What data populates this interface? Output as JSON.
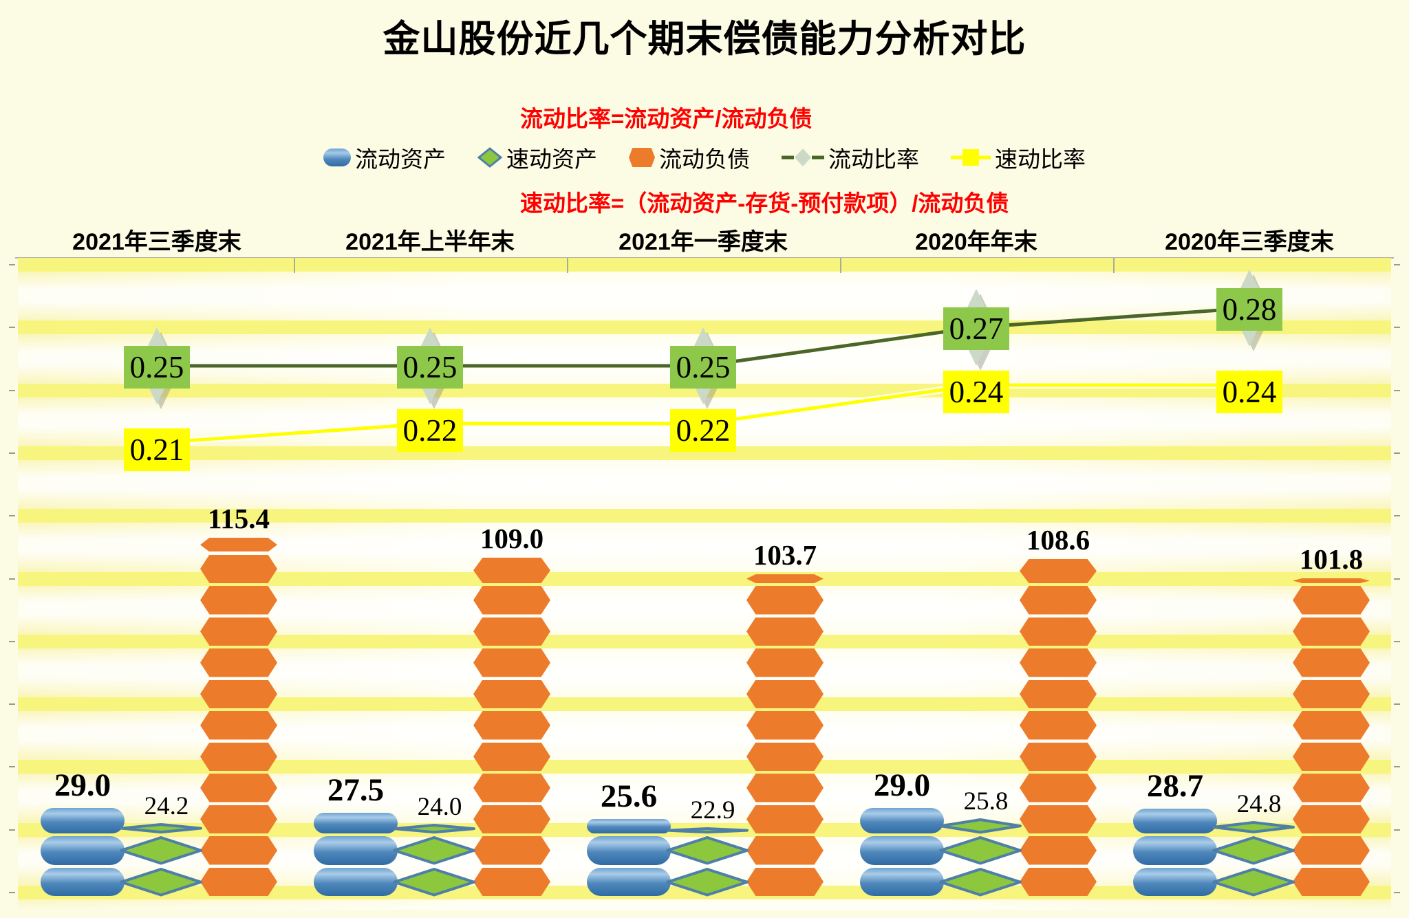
{
  "title": "金山股份近几个期末偿债能力分析对比",
  "formulas": [
    "流动比率=流动资产/流动负债",
    "速动比率=（流动资产-存货-预付款项）/流动负债"
  ],
  "legend": [
    {
      "label": "流动资产",
      "icon": "capsule-icon",
      "color": "#4E87BB"
    },
    {
      "label": "速动资产",
      "icon": "diamond-icon",
      "color": "#8CC73E"
    },
    {
      "label": "流动负债",
      "icon": "hexagon-icon",
      "color": "#EC7C2B"
    },
    {
      "label": "流动比率",
      "icon": "line-diamond-icon",
      "color": "#4A6628"
    },
    {
      "label": "速动比率",
      "icon": "line-square-icon",
      "color": "#FFFF00"
    }
  ],
  "chart_data": {
    "type": "pictorial-bar + line combo",
    "title": "金山股份近几个期末偿债能力分析对比",
    "categories": [
      "2021年三季度末",
      "2021年上半年末",
      "2021年一季度末",
      "2020年年末",
      "2020年三季度末"
    ],
    "series": [
      {
        "name": "流动资产",
        "type": "bar",
        "shape": "capsule",
        "color": "#4E87BB",
        "axis": "primary",
        "label_decimals": 1,
        "values": [
          29.0,
          27.5,
          25.6,
          29.0,
          28.7
        ]
      },
      {
        "name": "速动资产",
        "type": "bar",
        "shape": "diamond",
        "color": "#8CC73E",
        "axis": "primary",
        "label_decimals": 1,
        "values": [
          24.2,
          24.0,
          22.9,
          25.8,
          24.8
        ]
      },
      {
        "name": "流动负债",
        "type": "bar",
        "shape": "hexagon",
        "color": "#EC7C2B",
        "axis": "primary",
        "label_decimals": 1,
        "values": [
          115.4,
          109.0,
          103.7,
          108.6,
          101.8
        ]
      },
      {
        "name": "流动比率",
        "type": "line",
        "color": "#4A6628",
        "axis": "secondary",
        "label_decimals": 2,
        "label_bg": "#8DC84B",
        "marker": "pale-diamond",
        "values": [
          0.25,
          0.25,
          0.25,
          0.27,
          0.28
        ]
      },
      {
        "name": "速动比率",
        "type": "line",
        "color": "#FFFF00",
        "axis": "secondary",
        "label_decimals": 2,
        "label_bg": "#FFFF00",
        "marker": "square",
        "values": [
          0.21,
          0.22,
          0.22,
          0.24,
          0.24
        ]
      }
    ],
    "units_per_shape": 10,
    "primary_axis": {
      "min": 0,
      "max_estimate": 200,
      "gridline_step_estimate": 20,
      "labels_visible": false
    },
    "secondary_axis": {
      "min": 0,
      "max_estimate": 0.3,
      "labels_visible": false
    },
    "grid": "horizontal yellow bands, 11 lines",
    "legend_position": "top",
    "colors": {
      "background": "#FCFBE4",
      "grid_band": "#F8F57E",
      "bar_blue": "#4E87BB",
      "bar_green": "#8CC73E",
      "bar_orange": "#EC7C2B",
      "line_dark_green": "#4A6628",
      "line_yellow": "#FFFF00",
      "label_box_green": "#8DC84B",
      "label_box_yellow": "#FFFF00",
      "formula_red": "#FF0000"
    }
  }
}
